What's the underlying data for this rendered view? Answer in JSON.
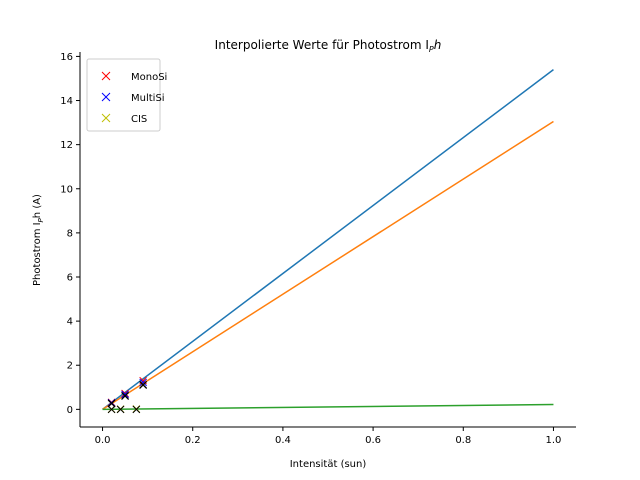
{
  "chart_data": {
    "type": "line",
    "title": "Interpolierte Werte für Photostrom I",
    "title_sub": "P",
    "title_suffix": "h",
    "xlabel": "Intensität (sun)",
    "ylabel": "Photostrom I",
    "ylabel_sub": "P",
    "ylabel_suffix": "h (A)",
    "xlim": [
      -0.05,
      1.05
    ],
    "ylim": [
      -0.8,
      16.2
    ],
    "xticks": [
      0.0,
      0.2,
      0.4,
      0.6,
      0.8,
      1.0
    ],
    "xtick_labels": [
      "0.0",
      "0.2",
      "0.4",
      "0.6",
      "0.8",
      "1.0"
    ],
    "yticks": [
      0,
      2,
      4,
      6,
      8,
      10,
      12,
      14,
      16
    ],
    "ytick_labels": [
      "0",
      "2",
      "4",
      "6",
      "8",
      "10",
      "12",
      "14",
      "16"
    ],
    "grid": false,
    "legend_position": "top-left",
    "legend": [
      {
        "name": "MonoSi",
        "color": "#ff0000",
        "marker": "x"
      },
      {
        "name": "MultiSi",
        "color": "#0000ff",
        "marker": "x"
      },
      {
        "name": "CIS",
        "color": "#bfbf00",
        "marker": "x"
      }
    ],
    "lines": [
      {
        "color": "#1f77b4",
        "x": [
          0.0,
          1.0
        ],
        "y": [
          0.0,
          15.4
        ]
      },
      {
        "color": "#ff7f0e",
        "x": [
          0.0,
          1.0
        ],
        "y": [
          0.0,
          13.05
        ]
      },
      {
        "color": "#2ca02c",
        "x": [
          0.0,
          1.0
        ],
        "y": [
          0.0,
          0.22
        ]
      }
    ],
    "scatter": [
      {
        "color": "#ff0000",
        "x": [
          0.02,
          0.05,
          0.09
        ],
        "y": [
          0.32,
          0.72,
          1.3
        ]
      },
      {
        "color": "#0000ff",
        "x": [
          0.02,
          0.05,
          0.09
        ],
        "y": [
          0.3,
          0.68,
          1.22
        ]
      },
      {
        "color": "#bfbf00",
        "x": [
          0.02,
          0.04,
          0.075
        ],
        "y": [
          0.005,
          0.01,
          0.015
        ]
      },
      {
        "color": "#000000",
        "x": [
          0.02,
          0.05,
          0.09,
          0.02,
          0.05,
          0.09,
          0.02,
          0.04,
          0.075
        ],
        "y": [
          0.28,
          0.62,
          1.12,
          0.26,
          0.6,
          1.1,
          0.0,
          0.0,
          0.0
        ]
      }
    ]
  }
}
